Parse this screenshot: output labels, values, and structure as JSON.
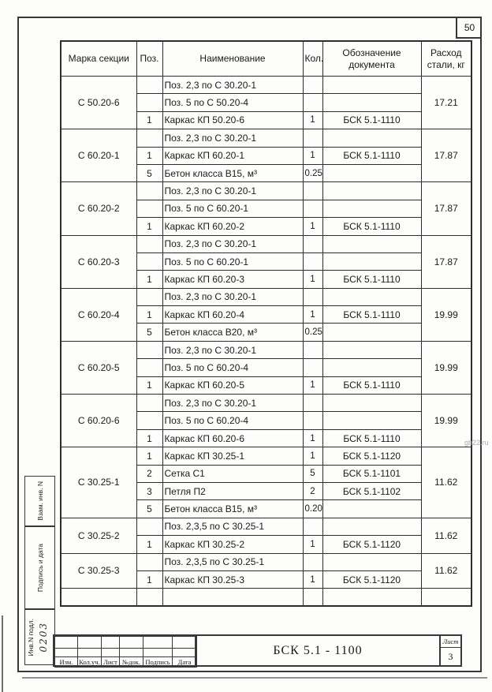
{
  "page": {
    "page_number": "50",
    "watermark": "gb22.ru",
    "colors": {
      "paper": "#fdfdfb",
      "ink": "#1a1a1a",
      "line": "#2e2e2e",
      "watermark": "#a9aeb3"
    }
  },
  "table": {
    "headers": {
      "mark": "Марка секции",
      "pos": "Поз.",
      "name": "Наименование",
      "qty": "Кол.",
      "doc": "Обозначение документа",
      "steel": "Расход стали, кг"
    },
    "groups": [
      {
        "mark": "С 50.20-6",
        "steel": "17.21",
        "rows": [
          {
            "pos": "",
            "name": "Поз. 2,3 по С 30.20-1",
            "qty": "",
            "doc": ""
          },
          {
            "pos": "",
            "name": "Поз. 5 по С 50.20-4",
            "qty": "",
            "doc": ""
          },
          {
            "pos": "1",
            "name": "Каркас КП 50.20-6",
            "qty": "1",
            "doc": "БСК 5.1-1110"
          }
        ]
      },
      {
        "mark": "С 60.20-1",
        "steel": "17.87",
        "rows": [
          {
            "pos": "",
            "name": "Поз. 2,3 по С 30.20-1",
            "qty": "",
            "doc": ""
          },
          {
            "pos": "1",
            "name": "Каркас КП 60.20-1",
            "qty": "1",
            "doc": "БСК 5.1-1110"
          },
          {
            "pos": "5",
            "name": "Бетон класса В15, м³",
            "qty": "0.25",
            "doc": ""
          }
        ]
      },
      {
        "mark": "С 60.20-2",
        "steel": "17.87",
        "rows": [
          {
            "pos": "",
            "name": "Поз. 2,3 по С 30.20-1",
            "qty": "",
            "doc": ""
          },
          {
            "pos": "",
            "name": "Поз. 5 по С 60.20-1",
            "qty": "",
            "doc": ""
          },
          {
            "pos": "1",
            "name": "Каркас КП 60.20-2",
            "qty": "1",
            "doc": "БСК 5.1-1110"
          }
        ]
      },
      {
        "mark": "С 60.20-3",
        "steel": "17.87",
        "rows": [
          {
            "pos": "",
            "name": "Поз. 2,3 по С 30.20-1",
            "qty": "",
            "doc": ""
          },
          {
            "pos": "",
            "name": "Поз. 5 по С 60.20-1",
            "qty": "",
            "doc": ""
          },
          {
            "pos": "1",
            "name": "Каркас КП 60.20-3",
            "qty": "1",
            "doc": "БСК 5.1-1110"
          }
        ]
      },
      {
        "mark": "С 60.20-4",
        "steel": "19.99",
        "rows": [
          {
            "pos": "",
            "name": "Поз. 2,3 по С 30.20-1",
            "qty": "",
            "doc": ""
          },
          {
            "pos": "1",
            "name": "Каркас КП 60.20-4",
            "qty": "1",
            "doc": "БСК 5.1-1110"
          },
          {
            "pos": "5",
            "name": "Бетон класса В20, м³",
            "qty": "0.25",
            "doc": ""
          }
        ]
      },
      {
        "mark": "С 60.20-5",
        "steel": "19.99",
        "rows": [
          {
            "pos": "",
            "name": "Поз. 2,3 по С 30.20-1",
            "qty": "",
            "doc": ""
          },
          {
            "pos": "",
            "name": "Поз. 5 по С 60.20-4",
            "qty": "",
            "doc": ""
          },
          {
            "pos": "1",
            "name": "Каркас КП 60.20-5",
            "qty": "1",
            "doc": "БСК 5.1-1110"
          }
        ]
      },
      {
        "mark": "С 60.20-6",
        "steel": "19.99",
        "rows": [
          {
            "pos": "",
            "name": "Поз. 2,3 по С 30.20-1",
            "qty": "",
            "doc": ""
          },
          {
            "pos": "",
            "name": "Поз. 5 по С 60.20-4",
            "qty": "",
            "doc": ""
          },
          {
            "pos": "1",
            "name": "Каркас КП 60.20-6",
            "qty": "1",
            "doc": "БСК 5.1-1110"
          }
        ]
      },
      {
        "mark": "С 30.25-1",
        "steel": "11.62",
        "rows": [
          {
            "pos": "1",
            "name": "Каркас КП 30.25-1",
            "qty": "1",
            "doc": "БСК 5.1-1120"
          },
          {
            "pos": "2",
            "name": "Сетка  С1",
            "qty": "5",
            "doc": "БСК 5.1-1101"
          },
          {
            "pos": "3",
            "name": "Петля П2",
            "qty": "2",
            "doc": "БСК 5.1-1102"
          },
          {
            "pos": "5",
            "name": "Бетон класса В15, м³",
            "qty": "0.20",
            "doc": ""
          }
        ]
      },
      {
        "mark": "С 30.25-2",
        "steel": "11.62",
        "rows": [
          {
            "pos": "",
            "name": "Поз. 2,3,5 по С 30.25-1",
            "qty": "",
            "doc": ""
          },
          {
            "pos": "1",
            "name": "Каркас КП 30.25-2",
            "qty": "1",
            "doc": "БСК 5.1-1120"
          }
        ]
      },
      {
        "mark": "С 30.25-3",
        "steel": "11.62",
        "rows": [
          {
            "pos": "",
            "name": "Поз. 2,3,5 по С 30.25-1",
            "qty": "",
            "doc": ""
          },
          {
            "pos": "1",
            "name": "Каркас КП 30.25-3",
            "qty": "1",
            "doc": "БСК 5.1-1120"
          }
        ]
      },
      {
        "mark": "",
        "steel": "",
        "rows": [
          {
            "pos": "",
            "name": "",
            "qty": "",
            "doc": ""
          }
        ]
      }
    ]
  },
  "title_block": {
    "doc_number": "БСК 5.1 - 1100",
    "sheet_label": "Лист",
    "sheet_number": "3",
    "columns": [
      "Изм.",
      "Кол.уч.",
      "Лист",
      "№док.",
      "Подпись",
      "Дата"
    ]
  },
  "margin": {
    "boxes": [
      "Взам. инв. N",
      "Подпись и дата",
      "Инв.N подл."
    ],
    "handwritten": "0203"
  }
}
